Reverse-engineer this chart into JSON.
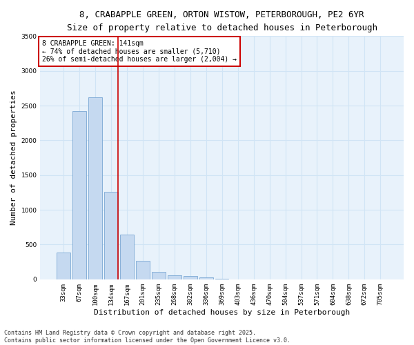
{
  "title_line1": "8, CRABAPPLE GREEN, ORTON WISTOW, PETERBOROUGH, PE2 6YR",
  "title_line2": "Size of property relative to detached houses in Peterborough",
  "xlabel": "Distribution of detached houses by size in Peterborough",
  "ylabel": "Number of detached properties",
  "categories": [
    "33sqm",
    "67sqm",
    "100sqm",
    "134sqm",
    "167sqm",
    "201sqm",
    "235sqm",
    "268sqm",
    "302sqm",
    "336sqm",
    "369sqm",
    "403sqm",
    "436sqm",
    "470sqm",
    "504sqm",
    "537sqm",
    "571sqm",
    "604sqm",
    "638sqm",
    "672sqm",
    "705sqm"
  ],
  "values": [
    390,
    2420,
    2620,
    1260,
    640,
    270,
    110,
    55,
    45,
    25,
    5,
    0,
    0,
    0,
    0,
    0,
    0,
    0,
    0,
    0,
    0
  ],
  "bar_color": "#c5d9f0",
  "bar_edge_color": "#7aa8d4",
  "vline_color": "#cc0000",
  "vline_x": 3.42,
  "annotation_text": "8 CRABAPPLE GREEN: 141sqm\n← 74% of detached houses are smaller (5,710)\n26% of semi-detached houses are larger (2,004) →",
  "annotation_box_color": "#cc0000",
  "ylim": [
    0,
    3500
  ],
  "yticks": [
    0,
    500,
    1000,
    1500,
    2000,
    2500,
    3000,
    3500
  ],
  "grid_color": "#d0e4f5",
  "background_color": "#e8f2fb",
  "footer_line1": "Contains HM Land Registry data © Crown copyright and database right 2025.",
  "footer_line2": "Contains public sector information licensed under the Open Government Licence v3.0.",
  "title_fontsize": 9,
  "title2_fontsize": 8.5,
  "axis_label_fontsize": 8,
  "tick_fontsize": 6.5,
  "annotation_fontsize": 7,
  "footer_fontsize": 6
}
